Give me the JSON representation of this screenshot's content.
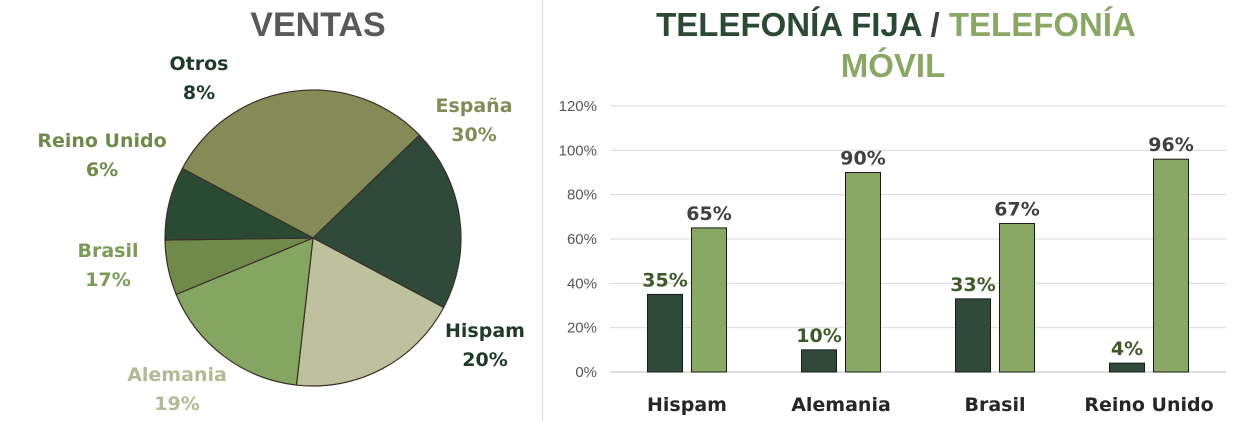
{
  "chart_data": [
    {
      "type": "pie",
      "title": "VENTAS",
      "slices": [
        {
          "label": "España",
          "value": 30,
          "pct_label": "30%",
          "color": "#848b56",
          "label_color": "#848b56"
        },
        {
          "label": "Hispam",
          "value": 20,
          "pct_label": "20%",
          "color": "#2f4a3a",
          "label_color": "#1f3a2c"
        },
        {
          "label": "Alemania",
          "value": 19,
          "pct_label": "19%",
          "color": "#bec19d",
          "label_color": "#b5b995"
        },
        {
          "label": "Brasil",
          "value": 17,
          "pct_label": "17%",
          "color": "#85a660",
          "label_color": "#7c9b58"
        },
        {
          "label": "Reino Unido",
          "value": 6,
          "pct_label": "6%",
          "color": "#6f8a4a",
          "label_color": "#6f8a4a"
        },
        {
          "label": "Otros",
          "value": 8,
          "pct_label": "8%",
          "color": "#2b4a33",
          "label_color": "#1f3a2c"
        }
      ]
    },
    {
      "type": "bar",
      "title": {
        "part1": "TELEFONÍA FIJA",
        "separator": " / ",
        "part2": "TELEFONÍA",
        "part3": "MÓVIL"
      },
      "categories": [
        "Hispam",
        "Alemania",
        "Brasil",
        "Reino Unido"
      ],
      "series": [
        {
          "values": [
            35,
            10,
            33,
            4
          ],
          "labels": [
            "35%",
            "10%",
            "33%",
            "4%"
          ],
          "color": "#2f4a3a",
          "label_color": "#3f5a2a"
        },
        {
          "values": [
            65,
            90,
            67,
            96
          ],
          "labels": [
            "65%",
            "90%",
            "67%",
            "96%"
          ],
          "color": "#8aa865",
          "label_color": "#404040"
        }
      ],
      "ylim": [
        0,
        120
      ],
      "yticks": [
        "0%",
        "20%",
        "40%",
        "60%",
        "80%",
        "100%",
        "120%"
      ],
      "grid": true,
      "colors": {
        "title_dark": "#2b4a35",
        "title_light": "#8aa865",
        "separator": "#404040"
      }
    }
  ]
}
